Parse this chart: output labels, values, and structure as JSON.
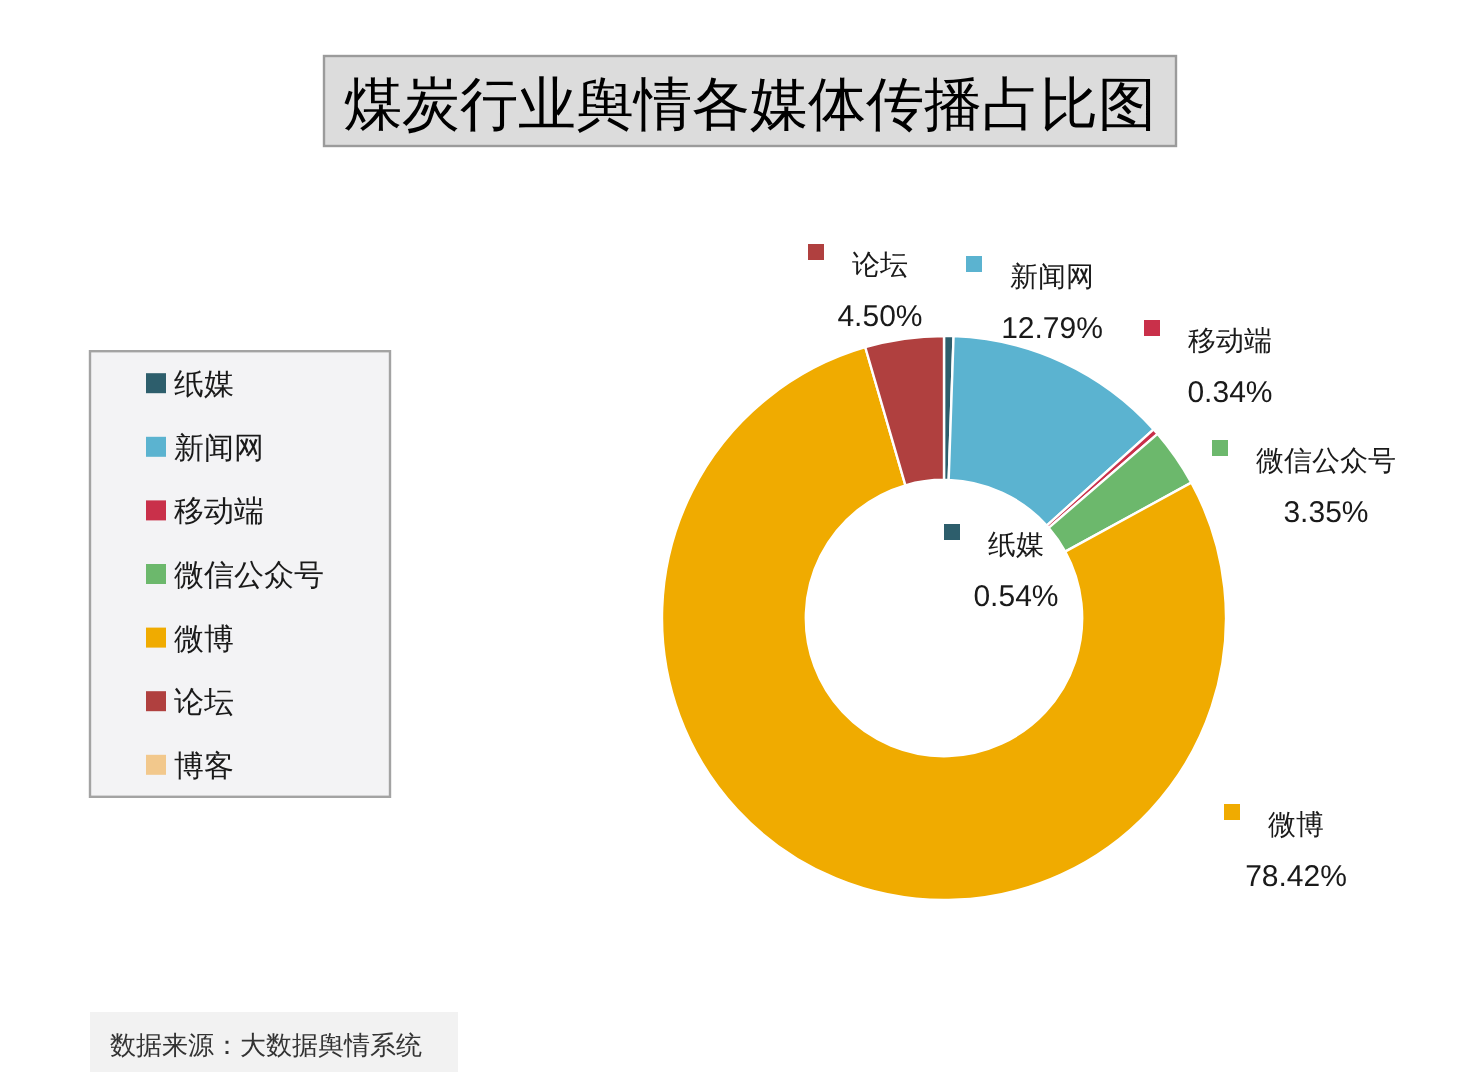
{
  "chart_data": {
    "type": "donut",
    "title": "煤炭行业舆情各媒体传播占比图",
    "categories": [
      "纸媒",
      "新闻网",
      "移动端",
      "微信公众号",
      "微博",
      "论坛",
      "博客"
    ],
    "values": [
      0.54,
      12.79,
      0.34,
      3.35,
      78.42,
      4.5,
      null
    ],
    "colors": [
      "#2d5e6c",
      "#5bb3d0",
      "#c9304a",
      "#6cb86c",
      "#f0ab00",
      "#b0403f",
      "#f2c88c"
    ],
    "value_labels": [
      "0.54%",
      "12.79%",
      "0.34%",
      "3.35%",
      "78.42%",
      "4.50%",
      null
    ],
    "legend": "left",
    "annotations": [
      "数据来源：大数据舆情系统"
    ]
  }
}
